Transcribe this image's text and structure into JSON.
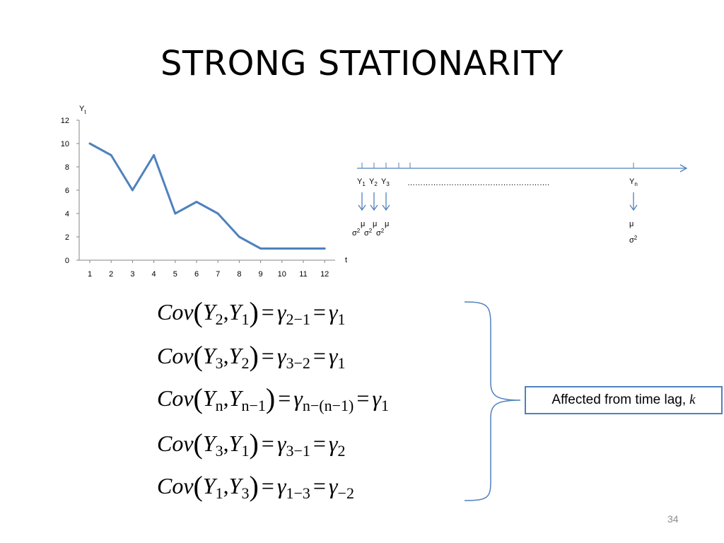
{
  "slide": {
    "title": "STRONG STATIONARITY",
    "page_number": "34"
  },
  "chart_data": {
    "type": "line",
    "title": "",
    "ylabel": "Y",
    "ylabel_sub": "t",
    "xlabel": "t",
    "x": [
      1,
      2,
      3,
      4,
      5,
      6,
      7,
      8,
      9,
      10,
      11,
      12
    ],
    "series": [
      {
        "values": [
          10,
          9,
          6,
          9,
          4,
          5,
          4,
          2,
          1,
          1,
          1,
          1
        ]
      }
    ],
    "ylim": [
      0,
      12
    ],
    "yticks": [
      0,
      2,
      4,
      6,
      8,
      10,
      12
    ],
    "xticks": [
      "1",
      "2",
      "3",
      "4",
      "5",
      "6",
      "7",
      "8",
      "9",
      "10",
      "11",
      "12"
    ],
    "grid": false,
    "line_color": "#4f81bd"
  },
  "sequence": {
    "labels": [
      {
        "base": "Y",
        "sub": "1"
      },
      {
        "base": "Y",
        "sub": "2"
      },
      {
        "base": "Y",
        "sub": "3"
      }
    ],
    "last_label": {
      "base": "Y",
      "sub": "n"
    },
    "dots": "……………………………………………….",
    "mean_symbol": "μ",
    "variance_symbol": "σ",
    "variance_power": "2",
    "arrow_color": "#4f81bd"
  },
  "equations": [
    {
      "a": "2",
      "b": "1",
      "gamma_lhs": "2−1",
      "gamma_rhs": "1"
    },
    {
      "a": "3",
      "b": "2",
      "gamma_lhs": "3−2",
      "gamma_rhs": "1"
    },
    {
      "a": "n",
      "b": "n−1",
      "gamma_lhs": "n−(n−1)",
      "gamma_rhs": "1"
    },
    {
      "a": "3",
      "b": "1",
      "gamma_lhs": "3−1",
      "gamma_rhs": "2"
    },
    {
      "a": "1",
      "b": "3",
      "gamma_lhs": "1−3",
      "gamma_rhs": "−2"
    }
  ],
  "equation_text": {
    "cov": "Cov",
    "y": "Y",
    "comma": ",",
    "equals": "=",
    "gamma": "γ",
    "open": "(",
    "close": ")"
  },
  "callout": {
    "text": "Affected from time lag,",
    "variable": "k",
    "border_color": "#4f81bd"
  }
}
